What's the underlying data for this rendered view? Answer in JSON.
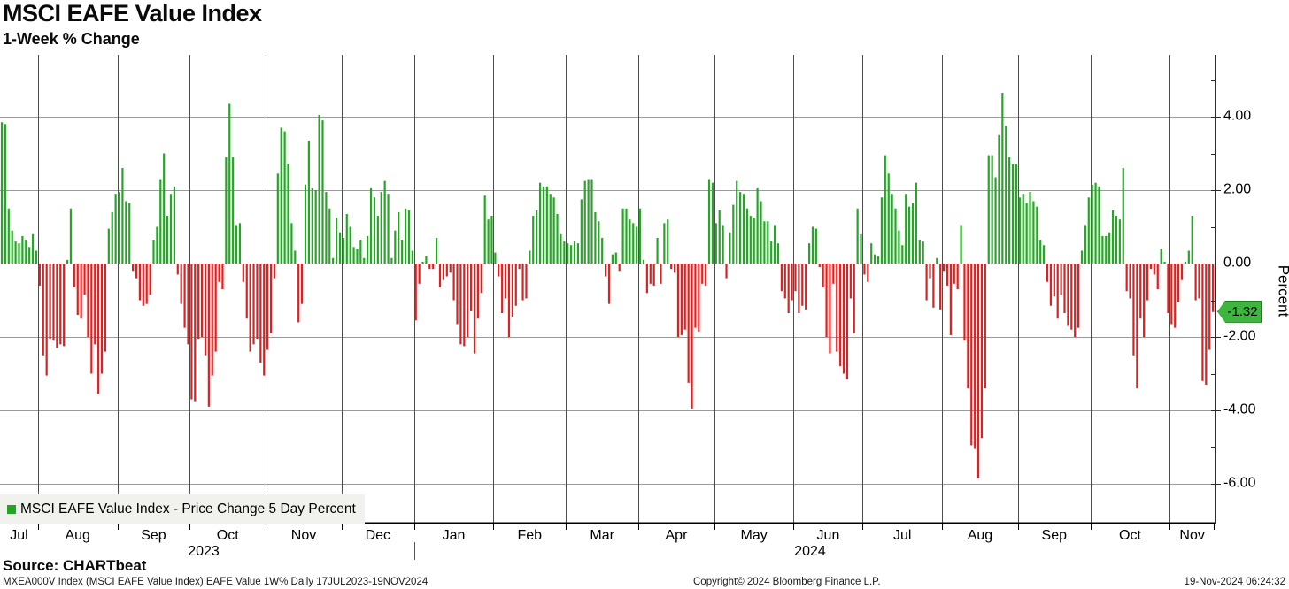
{
  "title": "MSCI EAFE Value Index",
  "subtitle": "1-Week % Change",
  "source_line": "Source: CHARTbeat",
  "footer": {
    "left": "MXEA000V Index (MSCI EAFE Value Index) EAFE Value 1W%  Daily 17JUL2023-19NOV2024",
    "center": "Copyright© 2024 Bloomberg Finance L.P.",
    "right": "19-Nov-2024 06:24:32"
  },
  "legend": {
    "label": "MSCI EAFE Value Index - Price Change 5 Day Percent",
    "swatch_color": "#22a522"
  },
  "last_value_badge": {
    "value": "-1.32",
    "fill": "#3eb53e"
  },
  "y_axis": {
    "label": "Percent",
    "major_ticks": [
      {
        "value": 4,
        "label": "4.00"
      },
      {
        "value": 2,
        "label": "2.00"
      },
      {
        "value": 0,
        "label": "0.00"
      },
      {
        "value": -2,
        "label": "-2.00"
      },
      {
        "value": -4,
        "label": "-4.00"
      },
      {
        "value": -6,
        "label": "-6.00"
      }
    ],
    "minor_tick_values": [
      5,
      3,
      1,
      -1,
      -3,
      -5
    ]
  },
  "x_axis": {
    "years": [
      {
        "label": "2023",
        "x": 230
      },
      {
        "label": "2024",
        "x": 915
      }
    ]
  },
  "colors": {
    "positive_bar": "#26a626",
    "negative_bar": "#e02020",
    "gridline_h": "#9a9a9a",
    "gridline_v": "#4d4d4d",
    "zero_line": "#000000",
    "axis": "#000000"
  },
  "chart_data": {
    "type": "bar",
    "title": "MSCI EAFE Value Index - Price Change 5 Day Percent",
    "xlabel": "",
    "ylabel": "Percent",
    "ylim": [
      -6.9,
      5.7
    ],
    "y_gridlines": [
      4,
      2,
      0,
      -2,
      -4,
      -6
    ],
    "period": "Daily 17JUL2023-19NOV2024",
    "last_value": -1.32,
    "months": [
      {
        "label": "Jul",
        "year": 2023,
        "start": 0
      },
      {
        "label": "Aug",
        "year": 2023,
        "start": 11
      },
      {
        "label": "Sep",
        "year": 2023,
        "start": 34
      },
      {
        "label": "Oct",
        "year": 2023,
        "start": 55
      },
      {
        "label": "Nov",
        "year": 2023,
        "start": 77
      },
      {
        "label": "Dec",
        "year": 2023,
        "start": 99
      },
      {
        "label": "Jan",
        "year": 2024,
        "start": 120
      },
      {
        "label": "Feb",
        "year": 2024,
        "start": 143
      },
      {
        "label": "Mar",
        "year": 2024,
        "start": 164
      },
      {
        "label": "Apr",
        "year": 2024,
        "start": 185
      },
      {
        "label": "May",
        "year": 2024,
        "start": 207
      },
      {
        "label": "Jun",
        "year": 2024,
        "start": 230
      },
      {
        "label": "Jul",
        "year": 2024,
        "start": 250
      },
      {
        "label": "Aug",
        "year": 2024,
        "start": 273
      },
      {
        "label": "Sep",
        "year": 2024,
        "start": 295
      },
      {
        "label": "Oct",
        "year": 2024,
        "start": 316
      },
      {
        "label": "Nov",
        "year": 2024,
        "start": 339
      }
    ],
    "values": [
      3.85,
      3.8,
      1.5,
      0.9,
      0.6,
      0.55,
      0.75,
      0.65,
      0.45,
      0.8,
      0.35,
      -0.6,
      -2.5,
      -3.05,
      -2.05,
      -2.1,
      -2.3,
      -2.2,
      -2.25,
      0.1,
      1.5,
      -0.65,
      -1.4,
      -1.5,
      -0.85,
      -2.0,
      -3.0,
      -2.2,
      -3.55,
      -3.0,
      -2.4,
      0.95,
      1.4,
      1.9,
      1.95,
      2.6,
      1.7,
      1.65,
      -0.2,
      -0.4,
      -1.0,
      -1.15,
      -1.1,
      -0.85,
      0.65,
      1.0,
      2.3,
      3.0,
      1.3,
      1.9,
      2.1,
      -0.3,
      -1.1,
      -1.75,
      -2.2,
      -3.7,
      -3.75,
      -2.05,
      -2.0,
      -2.5,
      -3.9,
      -3.05,
      -2.4,
      -0.5,
      -0.7,
      2.9,
      4.35,
      2.9,
      1.05,
      1.1,
      -0.5,
      -1.5,
      -2.4,
      -2.2,
      -2.05,
      -2.7,
      -3.05,
      -2.35,
      -1.9,
      -0.4,
      2.45,
      3.7,
      3.6,
      2.7,
      1.1,
      0.35,
      -1.6,
      -1.1,
      2.15,
      3.35,
      2.05,
      2.0,
      4.05,
      3.9,
      1.95,
      1.5,
      0.15,
      1.25,
      0.85,
      0.7,
      1.35,
      1.0,
      0.45,
      0.4,
      0.65,
      0.15,
      0.75,
      2.05,
      1.8,
      1.3,
      1.95,
      2.25,
      1.9,
      0.15,
      0.9,
      1.4,
      0.65,
      1.5,
      1.45,
      0.35,
      -1.55,
      -0.55,
      0.05,
      0.2,
      -0.15,
      -0.15,
      0.7,
      -0.65,
      -0.45,
      -0.35,
      -0.25,
      -1.0,
      -1.65,
      -2.2,
      -2.25,
      -2.0,
      -1.3,
      -2.45,
      -1.5,
      -0.8,
      1.85,
      1.2,
      1.3,
      0.3,
      -0.35,
      -1.35,
      -0.95,
      -2.0,
      -1.45,
      -1.15,
      -0.15,
      -1.0,
      -0.95,
      0.35,
      1.3,
      1.45,
      2.2,
      2.1,
      2.1,
      1.9,
      1.8,
      1.35,
      0.8,
      0.6,
      0.55,
      0.5,
      0.6,
      0.55,
      1.75,
      2.25,
      2.3,
      2.3,
      1.4,
      1.15,
      0.7,
      -0.35,
      -1.1,
      0.25,
      0.3,
      -0.2,
      1.5,
      1.5,
      1.2,
      1.1,
      1.0,
      1.5,
      0.1,
      -0.8,
      -0.55,
      -0.6,
      0.7,
      -0.55,
      1.1,
      1.2,
      -0.15,
      -0.25,
      -2.0,
      -1.95,
      -1.8,
      -3.25,
      -3.95,
      -1.75,
      -1.85,
      -0.55,
      -0.6,
      2.3,
      2.2,
      1.1,
      1.45,
      1.05,
      -0.4,
      0.85,
      1.6,
      2.25,
      1.95,
      1.9,
      1.5,
      1.3,
      1.25,
      2.05,
      1.7,
      1.15,
      1.15,
      0.6,
      1.05,
      0.55,
      -0.75,
      -0.95,
      -1.35,
      -1.0,
      -0.75,
      -1.35,
      -1.15,
      -1.25,
      0.55,
      1.0,
      0.95,
      -0.1,
      -0.65,
      -2.0,
      -2.45,
      -0.55,
      -2.4,
      -2.8,
      -3.0,
      -3.15,
      -0.95,
      -1.9,
      1.5,
      0.8,
      -0.3,
      -0.5,
      0.55,
      0.25,
      0.2,
      1.8,
      2.95,
      2.45,
      1.9,
      1.5,
      0.9,
      0.5,
      1.9,
      1.55,
      1.65,
      2.2,
      0.65,
      0.6,
      -1.0,
      -0.4,
      -1.2,
      0.15,
      -1.25,
      -0.2,
      -0.6,
      -1.95,
      -0.55,
      -0.7,
      1.05,
      -2.1,
      -3.4,
      -4.95,
      -5.05,
      -5.85,
      -4.75,
      -3.4,
      2.95,
      2.95,
      2.35,
      3.5,
      4.65,
      3.75,
      2.9,
      2.7,
      2.7,
      1.8,
      1.9,
      1.65,
      1.95,
      1.7,
      1.55,
      0.65,
      0.5,
      -0.5,
      -1.15,
      -0.9,
      -1.5,
      -0.85,
      -1.35,
      -1.7,
      -1.8,
      -2.0,
      -1.75,
      0.35,
      1.05,
      1.8,
      2.15,
      2.2,
      2.1,
      0.75,
      0.75,
      0.85,
      1.45,
      1.3,
      1.2,
      2.6,
      -0.75,
      -0.95,
      -2.5,
      -3.4,
      -1.5,
      -2.0,
      -1.0,
      -0.15,
      -0.3,
      -0.7,
      0.4,
      0.05,
      -1.35,
      -1.65,
      -1.75,
      -1.05,
      -0.45,
      0.05,
      0.35,
      1.3,
      -1.0,
      -0.95,
      -3.2,
      -3.3,
      -2.35,
      -1.32
    ]
  }
}
